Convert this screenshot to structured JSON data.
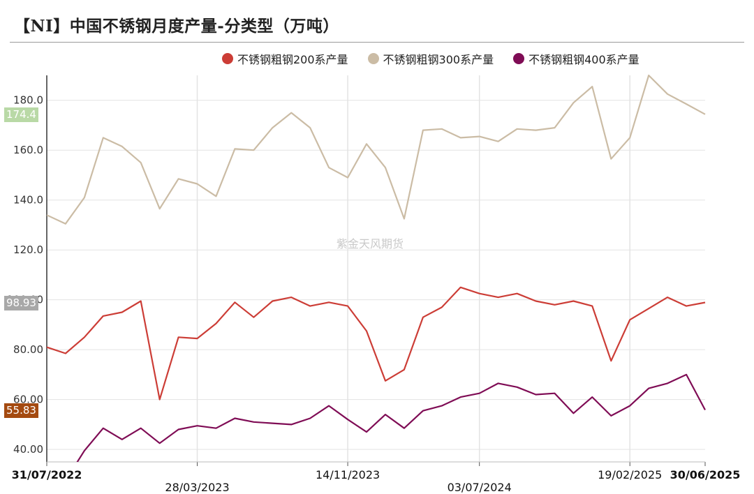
{
  "title": "【NI】中国不锈钢月度产量-分类型（万吨）",
  "watermark": "紫金天风期货",
  "chart_data": {
    "type": "line",
    "title": "【NI】中国不锈钢月度产量-分类型（万吨）",
    "legend_position": "top",
    "grid": true,
    "ylim": [
      35,
      190
    ],
    "yticks": [
      "40.00",
      "60.00",
      "80.00",
      "100.00",
      "120.0",
      "140.0",
      "160.0",
      "180.0"
    ],
    "xticks": [
      {
        "label": "31/07/2022",
        "index": 0,
        "row": 0,
        "bold": true
      },
      {
        "label": "28/03/2023",
        "index": 8,
        "row": 1,
        "bold": false
      },
      {
        "label": "14/11/2023",
        "index": 16,
        "row": 0,
        "bold": false
      },
      {
        "label": "03/07/2024",
        "index": 23,
        "row": 1,
        "bold": false
      },
      {
        "label": "19/02/2025",
        "index": 31,
        "row": 0,
        "bold": false
      },
      {
        "label": "30/06/2025",
        "index": 35,
        "row": 0,
        "bold": true
      }
    ],
    "series": [
      {
        "name": "不锈钢粗钢200系产量",
        "color": "#cc3d36",
        "values": [
          81.0,
          78.5,
          85.0,
          93.5,
          95.0,
          99.5,
          60.0,
          85.0,
          84.5,
          90.5,
          99.0,
          93.0,
          99.5,
          101.0,
          97.5,
          99.0,
          97.5,
          87.5,
          67.5,
          72.0,
          93.0,
          97.0,
          105.0,
          102.5,
          101.0,
          102.5,
          99.5,
          98.0,
          99.5,
          97.5,
          75.5,
          92.0,
          96.5,
          101.0,
          97.5,
          98.93
        ],
        "last_label": "98.93",
        "badge_color": "#a8a8a8"
      },
      {
        "name": "不锈钢粗钢300系产量",
        "color": "#cbbca5",
        "values": [
          134.0,
          130.5,
          141.0,
          165.0,
          161.5,
          155.0,
          136.5,
          148.5,
          146.5,
          141.5,
          160.5,
          160.0,
          169.0,
          175.0,
          169.0,
          153.0,
          149.0,
          162.5,
          153.0,
          132.5,
          168.0,
          168.5,
          165.0,
          165.5,
          163.5,
          168.5,
          168.0,
          169.0,
          179.0,
          185.5,
          156.5,
          165.0,
          190.0,
          182.5,
          178.5,
          174.4
        ],
        "last_label": "174.4",
        "badge_color": "#b9d9a6"
      },
      {
        "name": "不锈钢粗钢400系产量",
        "color": "#7f0c55",
        "values": [
          34.5,
          27.5,
          39.5,
          48.5,
          44.0,
          48.5,
          42.5,
          48.0,
          49.5,
          48.5,
          52.5,
          51.0,
          50.5,
          50.0,
          52.5,
          57.5,
          52.0,
          47.0,
          54.0,
          48.5,
          55.5,
          57.5,
          61.0,
          62.5,
          66.5,
          65.0,
          62.0,
          62.5,
          54.5,
          61.0,
          53.5,
          57.5,
          64.5,
          66.5,
          70.0,
          55.83
        ],
        "last_label": "55.83",
        "badge_color": "#a44a10"
      }
    ]
  }
}
